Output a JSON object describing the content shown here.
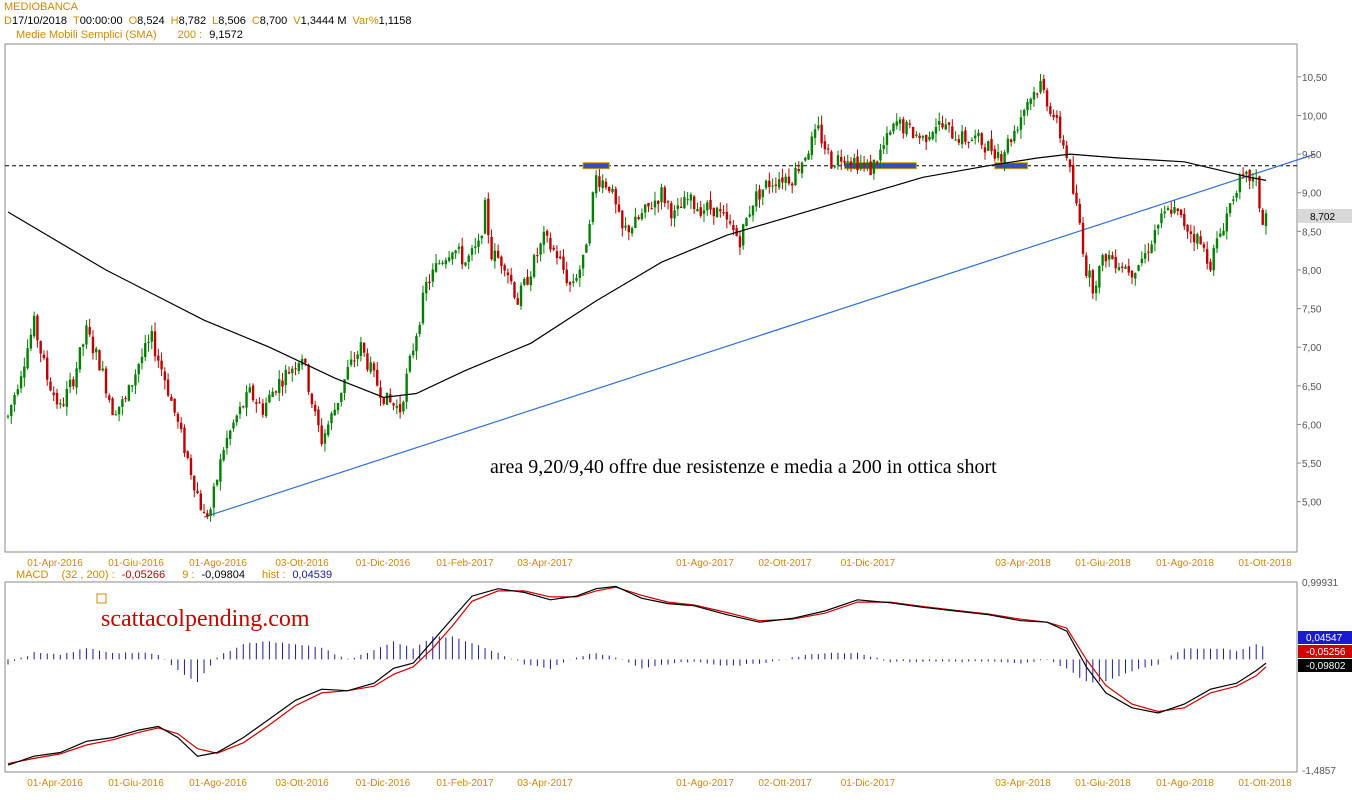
{
  "header": {
    "title": "MEDIOBANCA",
    "ohlc": [
      {
        "k": "D",
        "v": "17/10/2018"
      },
      {
        "k": "T",
        "v": "00:00:00"
      },
      {
        "k": "O",
        "v": "8,524"
      },
      {
        "k": "H",
        "v": "8,782"
      },
      {
        "k": "L",
        "v": "8,506"
      },
      {
        "k": "C",
        "v": "8,700"
      },
      {
        "k": "V",
        "v": "1,3444 M"
      },
      {
        "k": "Var%",
        "v": "1,1158"
      }
    ],
    "sma_label": "Medie Mobili Semplici (SMA)",
    "sma_period": "200 :",
    "sma_value": "9,1572"
  },
  "macd_header": {
    "label": "MACD",
    "params": "(32 , 200) :",
    "macd_value": "-0,05266",
    "signal_label": "9 :",
    "signal_value": "-0,09804",
    "hist_label": "hist :",
    "hist_value": "0,04539"
  },
  "colors": {
    "up": "#008000",
    "down": "#c00000",
    "sma": "#000000",
    "trendline": "#2f6fd6",
    "resistance": "#000000",
    "highlight": "#3050c0",
    "label_orange": "#d08a00",
    "macd_line": "#000000",
    "signal_line": "#d00000",
    "hist": "#1a1aa0",
    "watermark": "#cc0000"
  },
  "watermark": "scattacolpending.com",
  "chart_data": [
    {
      "type": "candlestick",
      "title": "MEDIOBANCA",
      "x_labels": [
        "01-Apr-2016",
        "01-Giu-2016",
        "01-Ago-2016",
        "03-Ott-2016",
        "01-Dic-2016",
        "01-Feb-2017",
        "03-Apr-2017",
        "01-Ago-2017",
        "02-Ott-2017",
        "01-Dic-2017",
        "03-Apr-2018",
        "01-Giu-2018",
        "01-Ago-2018",
        "01-Ott-2018"
      ],
      "y_ticks": [
        "10,50",
        "10,00",
        "9,50",
        "9,00",
        "8,50",
        "8,00",
        "7,50",
        "7,00",
        "6,50",
        "6,00",
        "5,50",
        "5,00"
      ],
      "ylim": [
        4.4,
        10.9
      ],
      "last_price_label": "8,702",
      "last_price": 8.7,
      "price_path": [
        [
          0,
          6.1
        ],
        [
          4,
          6.7
        ],
        [
          8,
          7.3
        ],
        [
          12,
          6.6
        ],
        [
          16,
          6.2
        ],
        [
          20,
          6.6
        ],
        [
          24,
          7.2
        ],
        [
          28,
          6.8
        ],
        [
          32,
          6.2
        ],
        [
          36,
          6.3
        ],
        [
          40,
          6.8
        ],
        [
          44,
          7.1
        ],
        [
          48,
          6.6
        ],
        [
          52,
          6.0
        ],
        [
          56,
          5.4
        ],
        [
          60,
          4.8
        ],
        [
          62,
          4.9
        ],
        [
          66,
          5.7
        ],
        [
          70,
          6.1
        ],
        [
          74,
          6.4
        ],
        [
          78,
          6.2
        ],
        [
          82,
          6.5
        ],
        [
          86,
          6.7
        ],
        [
          90,
          6.9
        ],
        [
          94,
          6.1
        ],
        [
          96,
          5.8
        ],
        [
          100,
          6.2
        ],
        [
          104,
          6.7
        ],
        [
          108,
          7.0
        ],
        [
          112,
          6.6
        ],
        [
          116,
          6.3
        ],
        [
          120,
          6.2
        ],
        [
          124,
          7.0
        ],
        [
          128,
          7.8
        ],
        [
          132,
          8.1
        ],
        [
          136,
          8.3
        ],
        [
          140,
          8.1
        ],
        [
          144,
          8.3
        ],
        [
          146,
          8.8
        ],
        [
          148,
          8.2
        ],
        [
          152,
          8.1
        ],
        [
          156,
          7.6
        ],
        [
          160,
          8.0
        ],
        [
          164,
          8.4
        ],
        [
          168,
          8.2
        ],
        [
          172,
          7.8
        ],
        [
          176,
          8.1
        ],
        [
          178,
          8.7
        ],
        [
          180,
          9.2
        ],
        [
          184,
          9.1
        ],
        [
          188,
          8.5
        ],
        [
          192,
          8.6
        ],
        [
          196,
          8.8
        ],
        [
          200,
          9.0
        ],
        [
          204,
          8.7
        ],
        [
          208,
          8.9
        ],
        [
          212,
          8.8
        ],
        [
          216,
          8.8
        ],
        [
          220,
          8.6
        ],
        [
          224,
          8.4
        ],
        [
          228,
          8.9
        ],
        [
          232,
          9.1
        ],
        [
          236,
          9.2
        ],
        [
          240,
          9.2
        ],
        [
          244,
          9.5
        ],
        [
          248,
          9.8
        ],
        [
          252,
          9.4
        ],
        [
          256,
          9.5
        ],
        [
          260,
          9.4
        ],
        [
          264,
          9.3
        ],
        [
          268,
          9.6
        ],
        [
          272,
          9.9
        ],
        [
          276,
          9.8
        ],
        [
          280,
          9.7
        ],
        [
          284,
          9.9
        ],
        [
          288,
          9.8
        ],
        [
          292,
          9.7
        ],
        [
          296,
          9.7
        ],
        [
          300,
          9.6
        ],
        [
          304,
          9.5
        ],
        [
          308,
          9.8
        ],
        [
          312,
          10.2
        ],
        [
          316,
          10.4
        ],
        [
          320,
          10.0
        ],
        [
          324,
          9.5
        ],
        [
          326,
          9.0
        ],
        [
          328,
          8.6
        ],
        [
          330,
          8.0
        ],
        [
          332,
          7.8
        ],
        [
          336,
          8.2
        ],
        [
          340,
          8.1
        ],
        [
          344,
          8.0
        ],
        [
          348,
          8.2
        ],
        [
          352,
          8.6
        ],
        [
          356,
          8.8
        ],
        [
          360,
          8.6
        ],
        [
          364,
          8.4
        ],
        [
          368,
          8.1
        ],
        [
          372,
          8.6
        ],
        [
          376,
          9.1
        ],
        [
          380,
          9.2
        ],
        [
          382,
          9.1
        ],
        [
          384,
          8.6
        ],
        [
          385,
          8.7
        ]
      ],
      "sma200_path": [
        [
          0,
          8.75
        ],
        [
          30,
          8.0
        ],
        [
          60,
          7.35
        ],
        [
          80,
          7.0
        ],
        [
          100,
          6.6
        ],
        [
          115,
          6.35
        ],
        [
          125,
          6.4
        ],
        [
          140,
          6.7
        ],
        [
          160,
          7.05
        ],
        [
          180,
          7.6
        ],
        [
          200,
          8.1
        ],
        [
          220,
          8.45
        ],
        [
          240,
          8.7
        ],
        [
          260,
          8.95
        ],
        [
          280,
          9.2
        ],
        [
          300,
          9.35
        ],
        [
          315,
          9.45
        ],
        [
          325,
          9.5
        ],
        [
          340,
          9.45
        ],
        [
          360,
          9.4
        ],
        [
          380,
          9.2
        ],
        [
          385,
          9.16
        ]
      ],
      "resistance_level": 9.35,
      "trendline": [
        [
          60,
          4.8
        ],
        [
          400,
          9.5
        ]
      ],
      "resistance_marks": [
        [
          176,
          184,
          9.35
        ],
        [
          256,
          278,
          9.35
        ],
        [
          302,
          312,
          9.35
        ]
      ],
      "annotation": "area 9,20/9,40 offre due resistenze e media a 200 in ottica short"
    },
    {
      "type": "line",
      "title": "MACD",
      "y_ticks": [
        "0,99931",
        "-1,4857"
      ],
      "ylim": [
        -1.4857,
        0.99931
      ],
      "value_labels": [
        "0,04547",
        "-0,05256",
        "-0,09802"
      ],
      "macd_path": [
        [
          0,
          -1.42
        ],
        [
          8,
          -1.3
        ],
        [
          16,
          -1.25
        ],
        [
          24,
          -1.1
        ],
        [
          32,
          -1.05
        ],
        [
          40,
          -0.95
        ],
        [
          46,
          -0.9
        ],
        [
          52,
          -1.05
        ],
        [
          58,
          -1.3
        ],
        [
          64,
          -1.25
        ],
        [
          72,
          -1.05
        ],
        [
          80,
          -0.8
        ],
        [
          88,
          -0.55
        ],
        [
          96,
          -0.4
        ],
        [
          104,
          -0.42
        ],
        [
          112,
          -0.32
        ],
        [
          118,
          -0.12
        ],
        [
          124,
          -0.05
        ],
        [
          130,
          0.25
        ],
        [
          136,
          0.55
        ],
        [
          142,
          0.85
        ],
        [
          150,
          0.95
        ],
        [
          158,
          0.9
        ],
        [
          166,
          0.8
        ],
        [
          174,
          0.85
        ],
        [
          180,
          0.95
        ],
        [
          186,
          0.98
        ],
        [
          194,
          0.82
        ],
        [
          202,
          0.75
        ],
        [
          210,
          0.72
        ],
        [
          220,
          0.6
        ],
        [
          230,
          0.5
        ],
        [
          240,
          0.55
        ],
        [
          250,
          0.65
        ],
        [
          260,
          0.8
        ],
        [
          270,
          0.76
        ],
        [
          280,
          0.7
        ],
        [
          290,
          0.65
        ],
        [
          300,
          0.6
        ],
        [
          310,
          0.52
        ],
        [
          318,
          0.5
        ],
        [
          324,
          0.38
        ],
        [
          330,
          -0.1
        ],
        [
          336,
          -0.45
        ],
        [
          344,
          -0.65
        ],
        [
          352,
          -0.72
        ],
        [
          360,
          -0.6
        ],
        [
          368,
          -0.4
        ],
        [
          376,
          -0.32
        ],
        [
          382,
          -0.15
        ],
        [
          385,
          -0.05
        ]
      ],
      "signal_path": [
        [
          0,
          -1.4
        ],
        [
          8,
          -1.33
        ],
        [
          16,
          -1.27
        ],
        [
          24,
          -1.15
        ],
        [
          32,
          -1.08
        ],
        [
          40,
          -0.98
        ],
        [
          46,
          -0.92
        ],
        [
          52,
          -1.0
        ],
        [
          58,
          -1.2
        ],
        [
          64,
          -1.26
        ],
        [
          72,
          -1.12
        ],
        [
          80,
          -0.88
        ],
        [
          88,
          -0.62
        ],
        [
          96,
          -0.45
        ],
        [
          104,
          -0.42
        ],
        [
          112,
          -0.36
        ],
        [
          118,
          -0.2
        ],
        [
          124,
          -0.1
        ],
        [
          130,
          0.15
        ],
        [
          136,
          0.45
        ],
        [
          142,
          0.78
        ],
        [
          150,
          0.92
        ],
        [
          158,
          0.92
        ],
        [
          166,
          0.84
        ],
        [
          174,
          0.84
        ],
        [
          180,
          0.92
        ],
        [
          186,
          0.97
        ],
        [
          194,
          0.86
        ],
        [
          202,
          0.77
        ],
        [
          210,
          0.73
        ],
        [
          220,
          0.63
        ],
        [
          230,
          0.52
        ],
        [
          240,
          0.54
        ],
        [
          250,
          0.62
        ],
        [
          260,
          0.77
        ],
        [
          270,
          0.77
        ],
        [
          280,
          0.71
        ],
        [
          290,
          0.66
        ],
        [
          300,
          0.61
        ],
        [
          310,
          0.54
        ],
        [
          318,
          0.5
        ],
        [
          324,
          0.42
        ],
        [
          330,
          0.0
        ],
        [
          336,
          -0.35
        ],
        [
          344,
          -0.6
        ],
        [
          352,
          -0.7
        ],
        [
          360,
          -0.65
        ],
        [
          368,
          -0.45
        ],
        [
          376,
          -0.36
        ],
        [
          382,
          -0.22
        ],
        [
          385,
          -0.1
        ]
      ]
    }
  ]
}
